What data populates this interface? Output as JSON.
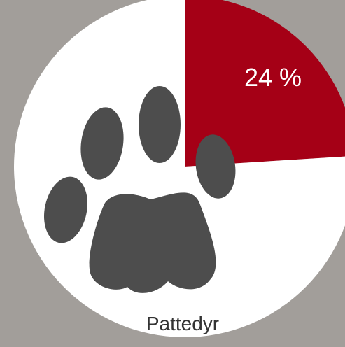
{
  "chart_data": {
    "type": "pie",
    "slices": [
      {
        "label": "24 %",
        "value": 24,
        "color": "#a50016"
      },
      {
        "value": 76,
        "color": "#ffffff"
      }
    ],
    "category_label": "Pattedyr"
  },
  "colors": {
    "background": "#a29e9a",
    "highlight": "#a50016",
    "remainder": "#ffffff",
    "icon": "#4d4d4d",
    "label_text": "#ffffff",
    "category_text": "#333333"
  },
  "icon": "paw-print-icon"
}
